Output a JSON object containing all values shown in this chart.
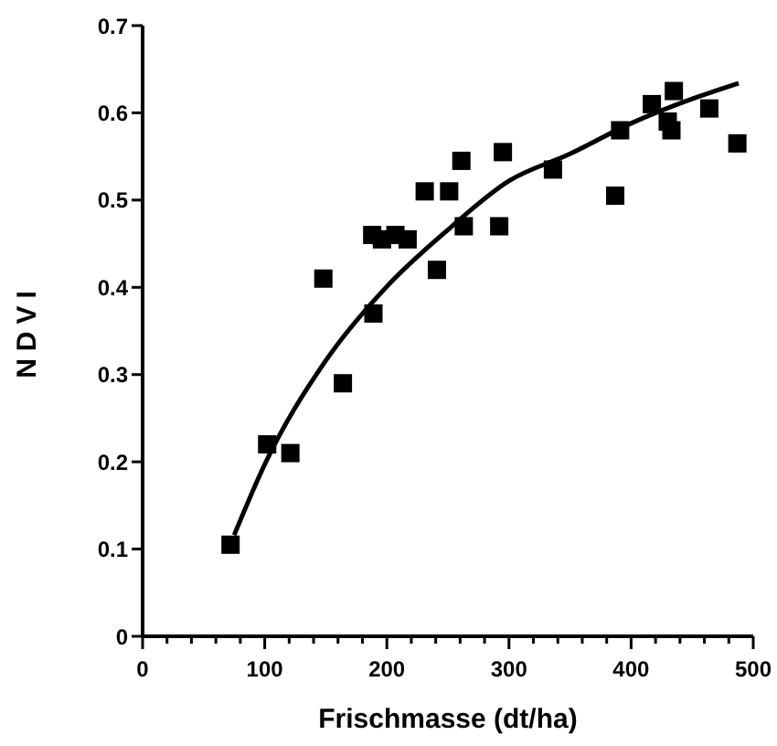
{
  "chart_data": {
    "type": "scatter",
    "xlabel": "Frischmasse (dt/ha)",
    "ylabel": "NDVI",
    "marker": "square",
    "xlim": [
      0,
      500
    ],
    "xticks": [
      0,
      {
        "value": 20,
        "label": null
      },
      {
        "value": 40,
        "label": null
      },
      {
        "value": 60,
        "label": null
      },
      {
        "value": 80,
        "label": null
      },
      100,
      {
        "value": 120,
        "label": null
      },
      {
        "value": 140,
        "label": null
      },
      {
        "value": 160,
        "label": null
      },
      {
        "value": 180,
        "label": null
      },
      200,
      {
        "value": 220,
        "label": null
      },
      {
        "value": 240,
        "label": null
      },
      {
        "value": 260,
        "label": null
      },
      {
        "value": 280,
        "label": null
      },
      300,
      {
        "value": 320,
        "label": null
      },
      {
        "value": 340,
        "label": null
      },
      {
        "value": 360,
        "label": null
      },
      {
        "value": 380,
        "label": null
      },
      400,
      {
        "value": 420,
        "label": null
      },
      {
        "value": 440,
        "label": null
      },
      {
        "value": 460,
        "label": null
      },
      {
        "value": 480,
        "label": null
      },
      500
    ],
    "ylim": [
      0,
      0.7
    ],
    "yticks": [
      0,
      0.1,
      0.2,
      0.3,
      0.4,
      0.5,
      0.6,
      0.7
    ],
    "series": [
      {
        "color": "#000000",
        "x": [
          72,
          102,
          121,
          148,
          164,
          189,
          188,
          196,
          207,
          217,
          231,
          241,
          251,
          261,
          263,
          292,
          295,
          336,
          387,
          391,
          417,
          430,
          433,
          435,
          464,
          487
        ],
        "values": [
          0.105,
          0.22,
          0.21,
          0.41,
          0.29,
          0.37,
          0.46,
          0.455,
          0.46,
          0.455,
          0.51,
          0.42,
          0.51,
          0.545,
          0.47,
          0.47,
          0.555,
          0.535,
          0.505,
          0.58,
          0.61,
          0.59,
          0.58,
          0.625,
          0.605,
          0.565
        ]
      },
      {
        "type": "line",
        "color": "#000000",
        "marker": "none",
        "x": [
          75,
          100,
          150,
          200,
          250,
          300,
          350,
          400,
          450,
          488
        ],
        "values": [
          0.116,
          0.197,
          0.316,
          0.401,
          0.466,
          0.522,
          0.553,
          0.588,
          0.616,
          0.634
        ]
      }
    ]
  }
}
